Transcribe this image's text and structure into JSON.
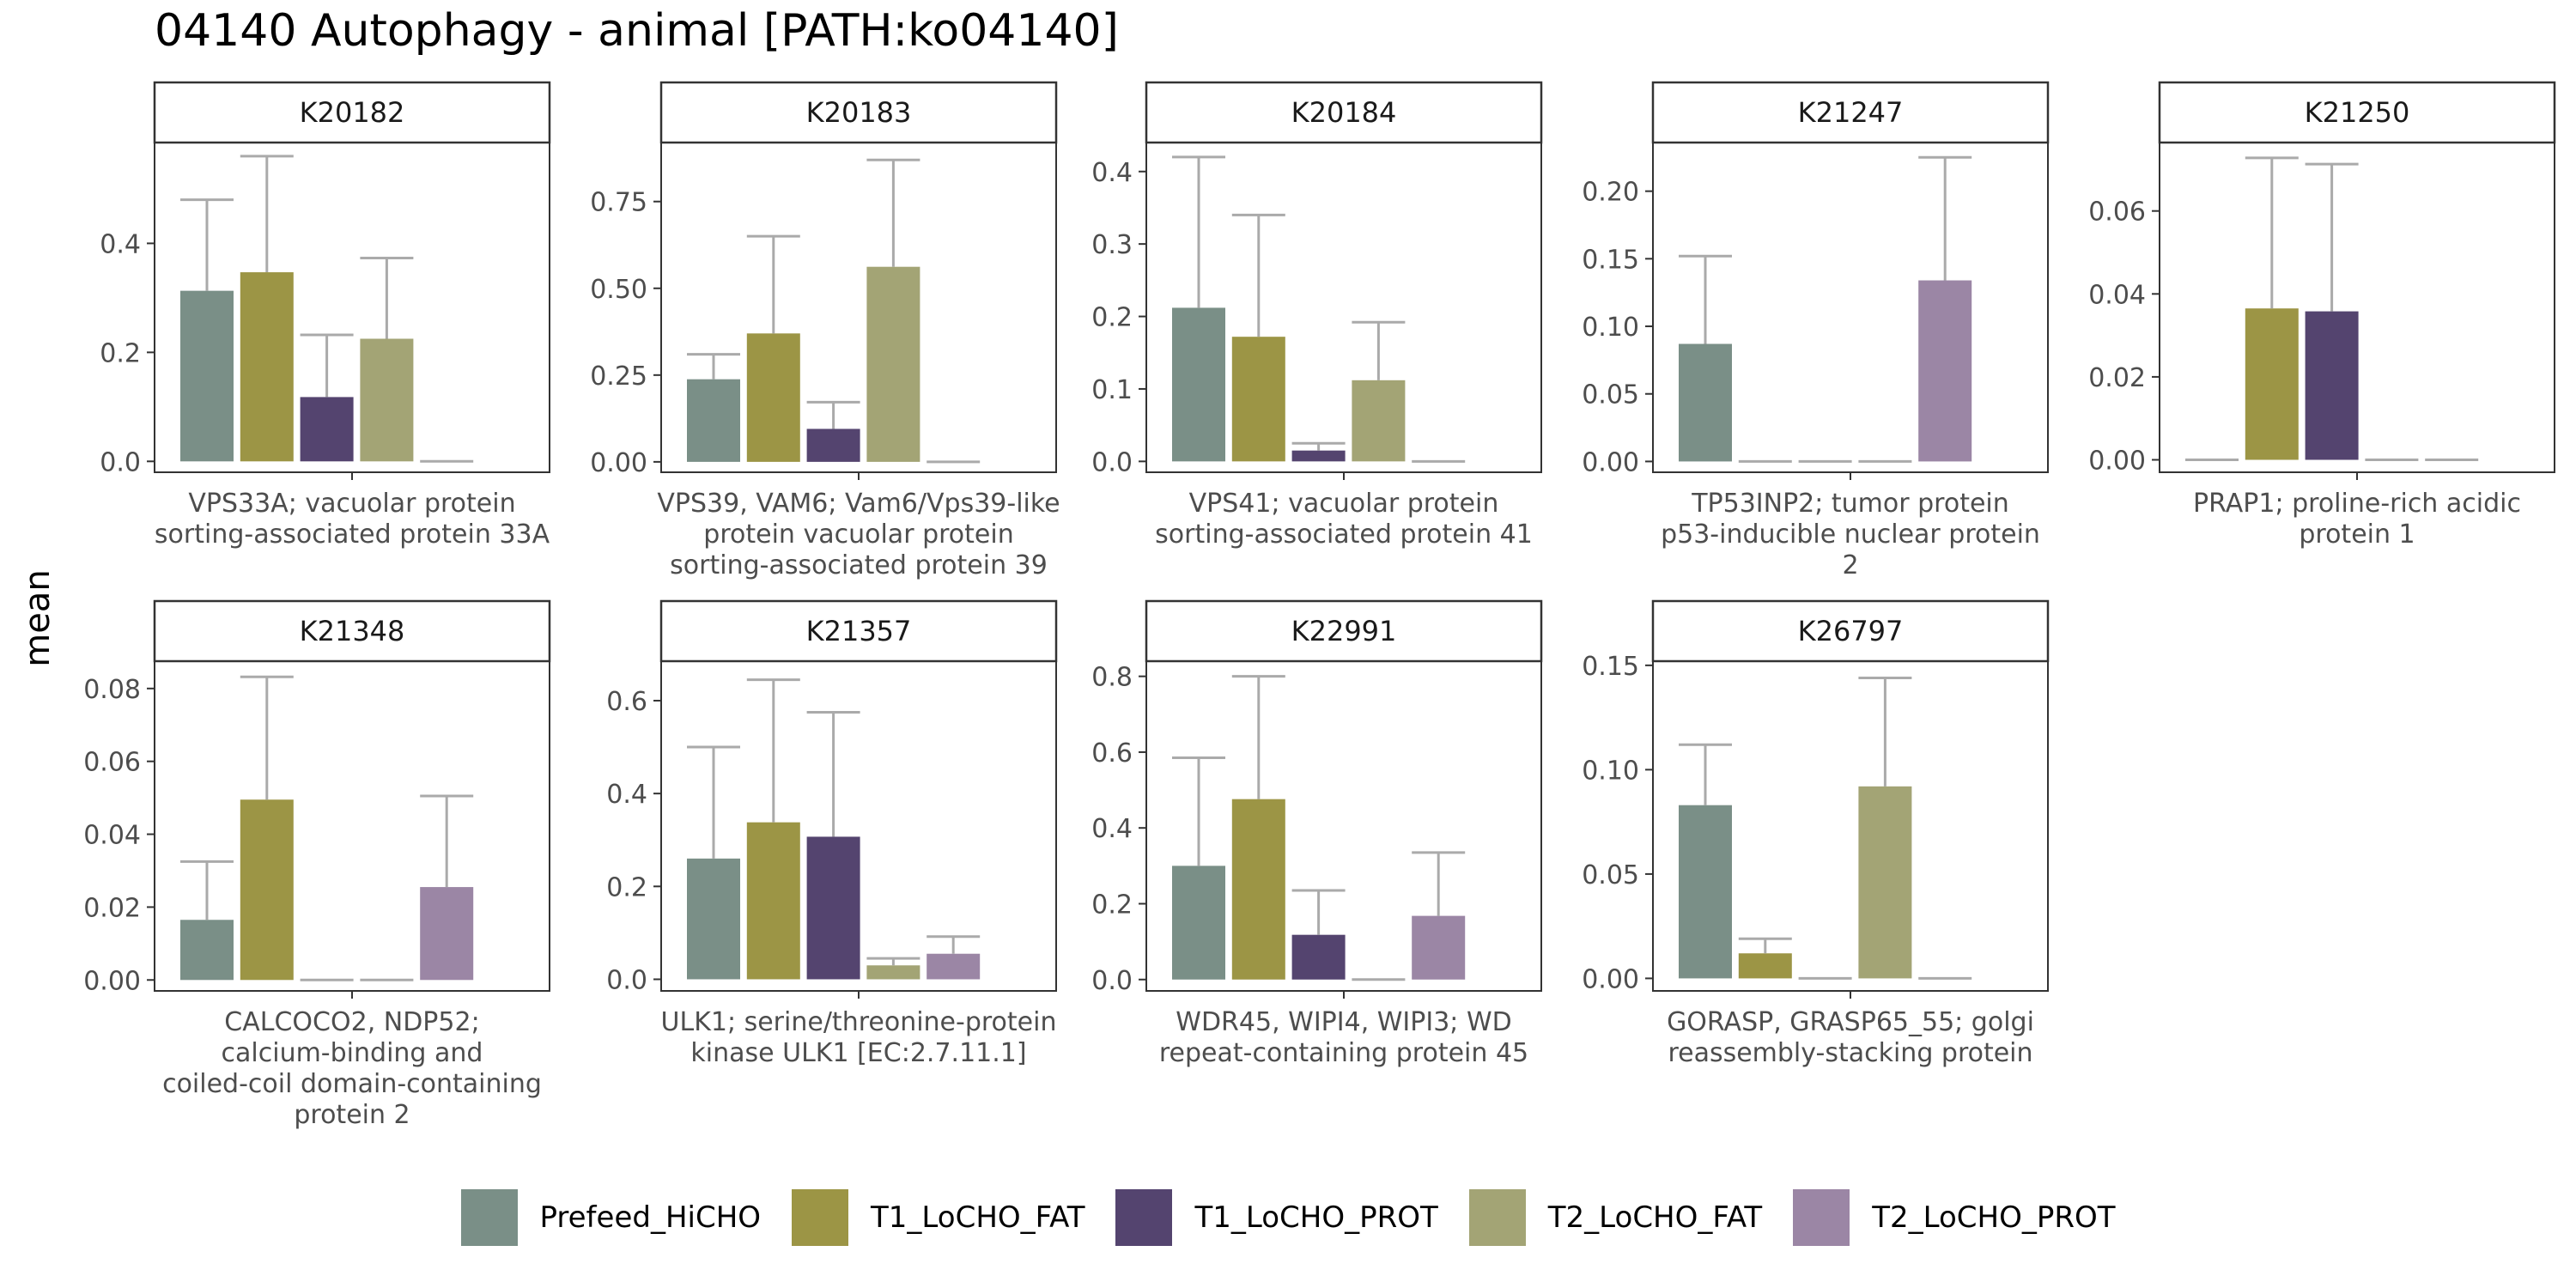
{
  "title": "04140 Autophagy - animal [PATH:ko04140]",
  "chart_data": {
    "type": "bar",
    "title": "04140 Autophagy - animal [PATH:ko04140]",
    "ylabel": "mean",
    "xlabel": "",
    "grid": false,
    "legend_position": "bottom",
    "series_names": [
      "Prefeed_HiCHO",
      "T1_LoCHO_FAT",
      "T1_LoCHO_PROT",
      "T2_LoCHO_FAT",
      "T2_LoCHO_PROT"
    ],
    "colors": [
      "#7a8f87",
      "#9c9545",
      "#54446f",
      "#a3a475",
      "#9b86a5"
    ],
    "error_color": "#aaaaaa",
    "facets": [
      {
        "strip": "K20182",
        "caption": [
          "VPS33A; vacuolar protein",
          "sorting-associated protein 33A"
        ],
        "ylim": [
          -0.02,
          0.585
        ],
        "ticks": [
          0.0,
          0.2,
          0.4
        ],
        "tick_labels": [
          "0.0",
          "0.2",
          "0.4"
        ],
        "means": [
          0.313,
          0.347,
          0.118,
          0.225,
          0.0
        ],
        "upper": [
          0.48,
          0.56,
          0.232,
          0.373,
          0.0
        ]
      },
      {
        "strip": "K20183",
        "caption": [
          "VPS39, VAM6; Vam6/Vps39-like",
          "protein vacuolar protein",
          "sorting-associated protein 39"
        ],
        "ylim": [
          -0.03,
          0.92
        ],
        "ticks": [
          0.0,
          0.25,
          0.5,
          0.75
        ],
        "tick_labels": [
          "0.00",
          "0.25",
          "0.50",
          "0.75"
        ],
        "means": [
          0.238,
          0.37,
          0.095,
          0.562,
          0.0
        ],
        "upper": [
          0.31,
          0.65,
          0.172,
          0.87,
          0.0
        ]
      },
      {
        "strip": "K20184",
        "caption": [
          "VPS41; vacuolar protein",
          "sorting-associated protein 41"
        ],
        "ylim": [
          -0.015,
          0.44
        ],
        "ticks": [
          0.0,
          0.1,
          0.2,
          0.3,
          0.4
        ],
        "tick_labels": [
          "0.0",
          "0.1",
          "0.2",
          "0.3",
          "0.4"
        ],
        "means": [
          0.212,
          0.172,
          0.015,
          0.112,
          0.0
        ],
        "upper": [
          0.42,
          0.34,
          0.025,
          0.192,
          0.0
        ]
      },
      {
        "strip": "K21247",
        "caption": [
          "TP53INP2; tumor protein",
          "p53-inducible nuclear protein",
          "2"
        ],
        "ylim": [
          -0.008,
          0.236
        ],
        "ticks": [
          0.0,
          0.05,
          0.1,
          0.15,
          0.2
        ],
        "tick_labels": [
          "0.00",
          "0.05",
          "0.10",
          "0.15",
          "0.20"
        ],
        "means": [
          0.087,
          0.0,
          0.0,
          0.0,
          0.134
        ],
        "upper": [
          0.152,
          0.0,
          0.0,
          0.0,
          0.225
        ]
      },
      {
        "strip": "K21250",
        "caption": [
          "PRAP1; proline-rich acidic",
          "protein 1"
        ],
        "ylim": [
          -0.003,
          0.0765
        ],
        "ticks": [
          0.0,
          0.02,
          0.04,
          0.06
        ],
        "tick_labels": [
          "0.00",
          "0.02",
          "0.04",
          "0.06"
        ],
        "means": [
          0.0,
          0.0365,
          0.0358,
          0.0,
          0.0
        ],
        "upper": [
          0.0,
          0.0728,
          0.0713,
          0.0,
          0.0
        ]
      },
      {
        "strip": "K21348",
        "caption": [
          "CALCOCO2, NDP52;",
          "calcium-binding and",
          "coiled-coil domain-containing",
          "protein 2"
        ],
        "ylim": [
          -0.003,
          0.0875
        ],
        "ticks": [
          0.0,
          0.02,
          0.04,
          0.06,
          0.08
        ],
        "tick_labels": [
          "0.00",
          "0.02",
          "0.04",
          "0.06",
          "0.08"
        ],
        "means": [
          0.0165,
          0.0495,
          0.0,
          0.0,
          0.0255
        ],
        "upper": [
          0.0325,
          0.0832,
          0.0,
          0.0,
          0.0505
        ]
      },
      {
        "strip": "K21357",
        "caption": [
          "ULK1; serine/threonine-protein",
          "kinase ULK1 [EC:2.7.11.1]"
        ],
        "ylim": [
          -0.025,
          0.685
        ],
        "ticks": [
          0.0,
          0.2,
          0.4,
          0.6
        ],
        "tick_labels": [
          "0.0",
          "0.2",
          "0.4",
          "0.6"
        ],
        "means": [
          0.26,
          0.338,
          0.307,
          0.03,
          0.055
        ],
        "upper": [
          0.5,
          0.645,
          0.575,
          0.045,
          0.092
        ]
      },
      {
        "strip": "K22991",
        "caption": [
          "WDR45, WIPI4, WIPI3; WD",
          "repeat-containing protein 45"
        ],
        "ylim": [
          -0.03,
          0.84
        ],
        "ticks": [
          0.0,
          0.2,
          0.4,
          0.6,
          0.8
        ],
        "tick_labels": [
          "0.0",
          "0.2",
          "0.4",
          "0.6",
          "0.8"
        ],
        "means": [
          0.3,
          0.476,
          0.118,
          0.0,
          0.168
        ],
        "upper": [
          0.585,
          0.8,
          0.235,
          0.0,
          0.335
        ]
      },
      {
        "strip": "K26797",
        "caption": [
          "GORASP, GRASP65_55; golgi",
          "reassembly-stacking protein"
        ],
        "ylim": [
          -0.006,
          0.152
        ],
        "ticks": [
          0.0,
          0.05,
          0.1,
          0.15
        ],
        "tick_labels": [
          "0.00",
          "0.05",
          "0.10",
          "0.15"
        ],
        "means": [
          0.083,
          0.012,
          0.0,
          0.092,
          0.0
        ],
        "upper": [
          0.112,
          0.019,
          0.0,
          0.144,
          0.0
        ]
      }
    ]
  }
}
